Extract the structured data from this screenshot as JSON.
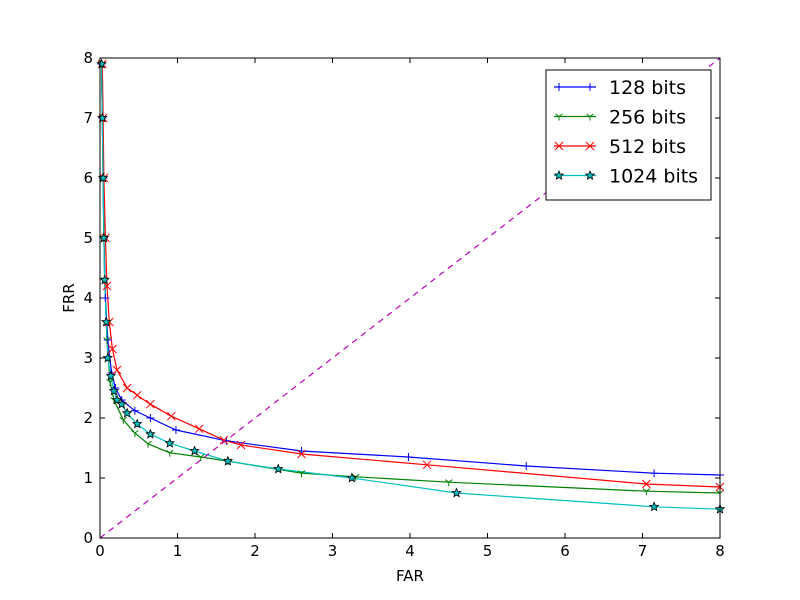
{
  "chart_data": {
    "type": "line",
    "title": "",
    "xlabel": "FAR",
    "ylabel": "FRR",
    "xlim": [
      0,
      8
    ],
    "ylim": [
      0,
      8
    ],
    "xticks": [
      "0",
      "1",
      "2",
      "3",
      "4",
      "5",
      "6",
      "7",
      "8"
    ],
    "yticks": [
      "0",
      "1",
      "2",
      "3",
      "4",
      "5",
      "6",
      "7",
      "8"
    ],
    "grid": false,
    "legend_position": "top-right",
    "series": [
      {
        "name": "128 bits",
        "color": "#0000ff",
        "marker": "plus",
        "points": [
          [
            0.02,
            7.9
          ],
          [
            0.03,
            7.0
          ],
          [
            0.04,
            6.0
          ],
          [
            0.05,
            5.0
          ],
          [
            0.07,
            4.0
          ],
          [
            0.1,
            3.3
          ],
          [
            0.15,
            2.75
          ],
          [
            0.2,
            2.5
          ],
          [
            0.28,
            2.3
          ],
          [
            0.45,
            2.12
          ],
          [
            0.65,
            2.0
          ],
          [
            0.98,
            1.8
          ],
          [
            1.63,
            1.62
          ],
          [
            2.6,
            1.45
          ],
          [
            3.98,
            1.35
          ],
          [
            5.5,
            1.2
          ],
          [
            7.15,
            1.08
          ],
          [
            8.0,
            1.05
          ]
        ]
      },
      {
        "name": "256 bits",
        "color": "#008000",
        "marker": "tri_down",
        "points": [
          [
            0.02,
            7.9
          ],
          [
            0.03,
            7.0
          ],
          [
            0.04,
            6.0
          ],
          [
            0.05,
            5.0
          ],
          [
            0.06,
            4.3
          ],
          [
            0.09,
            3.3
          ],
          [
            0.13,
            2.6
          ],
          [
            0.18,
            2.3
          ],
          [
            0.3,
            1.97
          ],
          [
            0.45,
            1.75
          ],
          [
            0.62,
            1.57
          ],
          [
            0.9,
            1.42
          ],
          [
            1.3,
            1.35
          ],
          [
            1.65,
            1.28
          ],
          [
            2.6,
            1.08
          ],
          [
            3.3,
            1.02
          ],
          [
            4.5,
            0.93
          ],
          [
            7.05,
            0.78
          ],
          [
            8.0,
            0.75
          ]
        ]
      },
      {
        "name": "512 bits",
        "color": "#ff0000",
        "marker": "x",
        "points": [
          [
            0.03,
            7.9
          ],
          [
            0.04,
            7.0
          ],
          [
            0.05,
            6.0
          ],
          [
            0.07,
            5.0
          ],
          [
            0.09,
            4.2
          ],
          [
            0.12,
            3.6
          ],
          [
            0.16,
            3.15
          ],
          [
            0.22,
            2.8
          ],
          [
            0.35,
            2.5
          ],
          [
            0.48,
            2.38
          ],
          [
            0.65,
            2.23
          ],
          [
            0.92,
            2.03
          ],
          [
            1.28,
            1.82
          ],
          [
            1.6,
            1.63
          ],
          [
            1.82,
            1.55
          ],
          [
            2.6,
            1.4
          ],
          [
            4.22,
            1.22
          ],
          [
            7.05,
            0.9
          ],
          [
            8.0,
            0.85
          ]
        ]
      },
      {
        "name": "1024 bits",
        "color": "#00bfbf",
        "marker": "star",
        "points": [
          [
            0.02,
            7.9
          ],
          [
            0.03,
            7.0
          ],
          [
            0.04,
            6.0
          ],
          [
            0.05,
            5.0
          ],
          [
            0.06,
            4.3
          ],
          [
            0.08,
            3.6
          ],
          [
            0.1,
            3.0
          ],
          [
            0.14,
            2.7
          ],
          [
            0.18,
            2.45
          ],
          [
            0.22,
            2.3
          ],
          [
            0.28,
            2.23
          ],
          [
            0.35,
            2.08
          ],
          [
            0.48,
            1.9
          ],
          [
            0.65,
            1.73
          ],
          [
            0.9,
            1.58
          ],
          [
            1.22,
            1.45
          ],
          [
            1.65,
            1.28
          ],
          [
            2.3,
            1.15
          ],
          [
            3.25,
            1.0
          ],
          [
            4.6,
            0.75
          ],
          [
            7.15,
            0.52
          ],
          [
            8.0,
            0.48
          ]
        ]
      },
      {
        "name": "",
        "color": "#bf00bf",
        "dashed": true,
        "marker": "none",
        "points": [
          [
            0,
            0
          ],
          [
            8,
            8
          ]
        ]
      }
    ]
  }
}
